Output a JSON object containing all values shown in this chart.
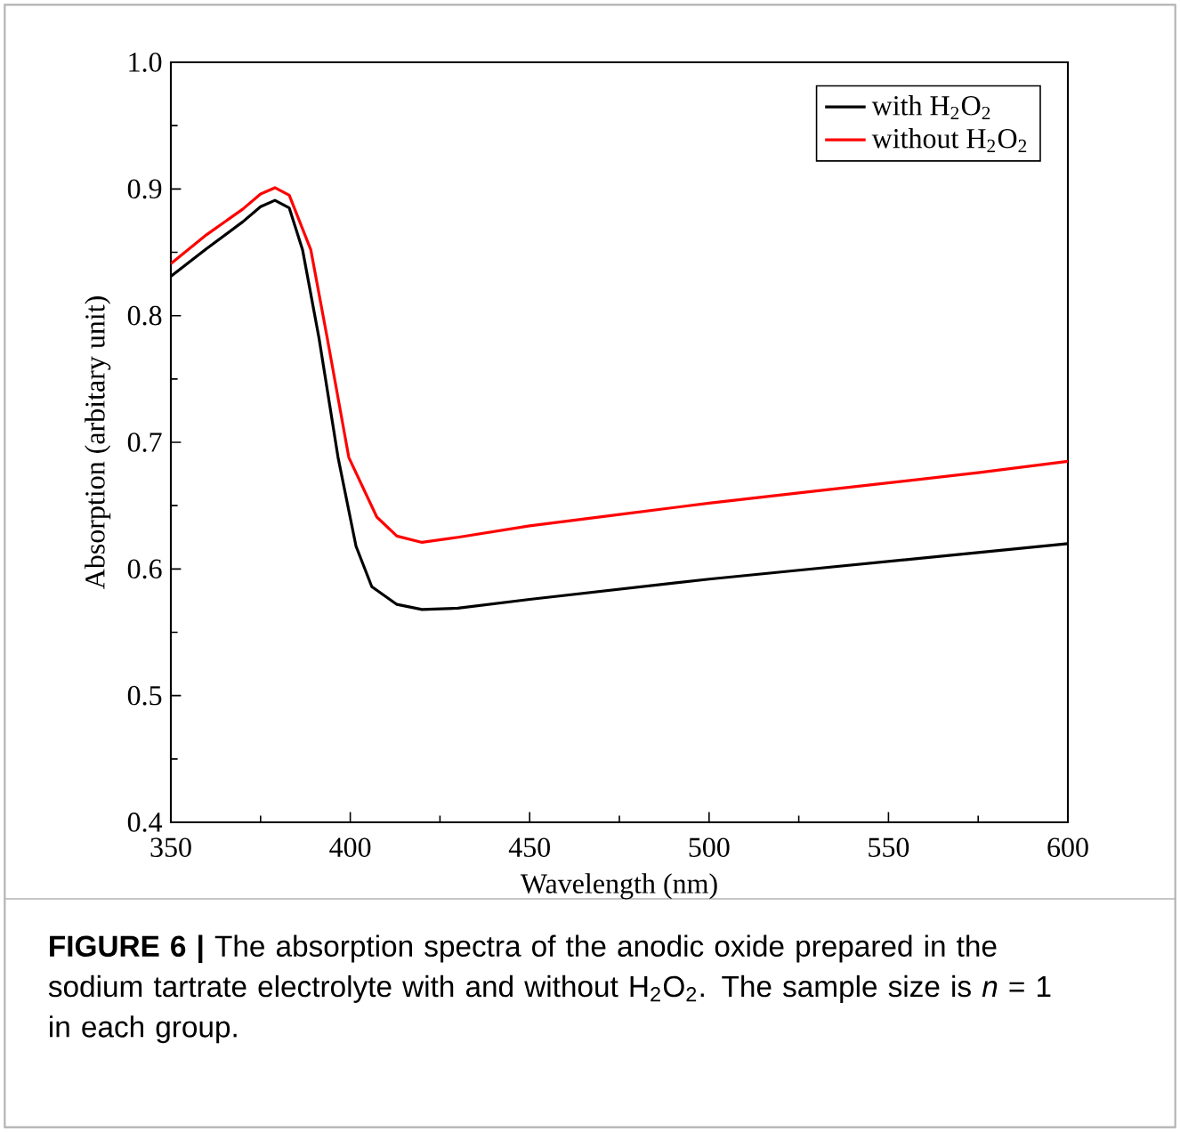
{
  "chart_data": {
    "type": "line",
    "title": "**FIGURE 6 |** The absorption spectra of the anodic oxide prepared in the sodium tartrate electrolyte with and without H$_{2}$O$_{2}$. The sample size is *n* = 1 in each group.",
    "xlabel": "Wavelength (nm)",
    "ylabel": "Absorption (arbitary unit)",
    "xlim": [
      350,
      600
    ],
    "ylim": [
      0.4,
      1.0
    ],
    "xticks": [
      350,
      400,
      450,
      500,
      550,
      600
    ],
    "yticks": [
      0.4,
      0.5,
      0.6,
      0.7,
      0.8,
      0.9,
      {
        "value": 1.0,
        "label": "1.0"
      }
    ],
    "legend": "top right",
    "marker": "none",
    "line_style": "solid",
    "grid": false,
    "series": [
      {
        "name": "with H$_{2}$O$_{2}$",
        "color": "#000000",
        "x": [
          350,
          360,
          370,
          375,
          379,
          383,
          386.7,
          391.3,
          396.6,
          401.6,
          406,
          413,
          420,
          430,
          450,
          475,
          500,
          525,
          550,
          575,
          600
        ],
        "values": [
          0.831,
          0.853,
          0.874,
          0.886,
          0.891,
          0.885,
          0.852,
          0.782,
          0.688,
          0.618,
          0.586,
          0.572,
          0.568,
          0.569,
          0.576,
          0.584,
          0.592,
          0.599,
          0.606,
          0.613,
          0.62
        ]
      },
      {
        "name": "without H$_{2}$O$_{2}$",
        "color": "#ff0000",
        "x": [
          350,
          360,
          370,
          375,
          379,
          383,
          389,
          393.6,
          399.6,
          407.4,
          413,
          420,
          430,
          450,
          475,
          500,
          525,
          550,
          575,
          600
        ],
        "values": [
          0.841,
          0.864,
          0.884,
          0.896,
          0.901,
          0.895,
          0.852,
          0.782,
          0.688,
          0.641,
          0.626,
          0.621,
          0.625,
          0.634,
          0.643,
          0.652,
          0.66,
          0.668,
          0.676,
          0.685
        ]
      }
    ]
  }
}
